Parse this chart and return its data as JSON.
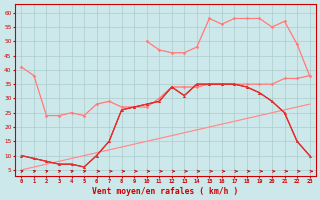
{
  "bg_color": "#cce8ea",
  "grid_color": "#aacccc",
  "xlabel": "Vent moyen/en rafales ( km/h )",
  "x": [
    0,
    1,
    2,
    3,
    4,
    5,
    6,
    7,
    8,
    9,
    10,
    11,
    12,
    13,
    14,
    15,
    16,
    17,
    18,
    19,
    20,
    21,
    22,
    23
  ],
  "ylim_min": 3,
  "ylim_max": 63,
  "yticks": [
    5,
    10,
    15,
    20,
    25,
    30,
    35,
    40,
    45,
    50,
    55,
    60
  ],
  "series": {
    "diag1_y": [
      5,
      6,
      7,
      8,
      9,
      10,
      11,
      12,
      13,
      14,
      15,
      16,
      17,
      18,
      19,
      20,
      21,
      22,
      23,
      24,
      25,
      26,
      27,
      28
    ],
    "diag2_y": [
      5,
      6,
      7,
      8,
      9,
      10,
      11,
      12,
      13,
      14,
      15,
      16,
      17,
      18,
      19,
      20,
      21,
      22,
      23,
      24,
      25,
      26,
      27,
      28
    ],
    "upper1_y": [
      41,
      38,
      24,
      24,
      25,
      24,
      28,
      29,
      27,
      27,
      27,
      30,
      34,
      34,
      34,
      35,
      35,
      35,
      35,
      35,
      35,
      37,
      37,
      38
    ],
    "upper2_y": [
      41,
      38,
      24,
      24,
      25,
      24,
      28,
      29,
      27,
      27,
      27,
      30,
      34,
      34,
      34,
      35,
      35,
      35,
      35,
      35,
      35,
      37,
      37,
      38
    ],
    "mid1_y": [
      10,
      9,
      8,
      7,
      7,
      6,
      10,
      15,
      26,
      27,
      28,
      29,
      34,
      31,
      35,
      35,
      35,
      35,
      34,
      32,
      29,
      25,
      15,
      10
    ],
    "mid2_y": [
      10,
      9,
      8,
      7,
      7,
      6,
      10,
      15,
      26,
      27,
      28,
      29,
      34,
      31,
      35,
      35,
      35,
      35,
      34,
      32,
      29,
      25,
      15,
      10
    ],
    "top_x": [
      10,
      11,
      12,
      13,
      14,
      15,
      16,
      17,
      18,
      19,
      20,
      21,
      22,
      23
    ],
    "top1_y": [
      50,
      47,
      46,
      46,
      48,
      58,
      56,
      58,
      58,
      58,
      55,
      57,
      49,
      38
    ],
    "top2_y": [
      50,
      47,
      46,
      46,
      48,
      58,
      56,
      58,
      58,
      58,
      55,
      57,
      49,
      38
    ]
  },
  "arrow_angles_low": [
    45,
    45,
    50,
    45,
    45,
    45,
    5,
    5,
    5,
    5,
    5,
    5,
    5,
    5,
    5,
    5,
    5,
    5,
    5,
    5,
    5,
    5,
    5,
    5
  ],
  "colors": {
    "diag_light": "#ffb0b0",
    "diag_med": "#ff8888",
    "upper_light": "#ffaaaa",
    "upper_med": "#ff7777",
    "mid_dark": "#cc0000",
    "mid_med": "#ee3333",
    "top_light": "#ffaaaa",
    "top_med": "#ff7777",
    "arrow": "#cc0000"
  }
}
